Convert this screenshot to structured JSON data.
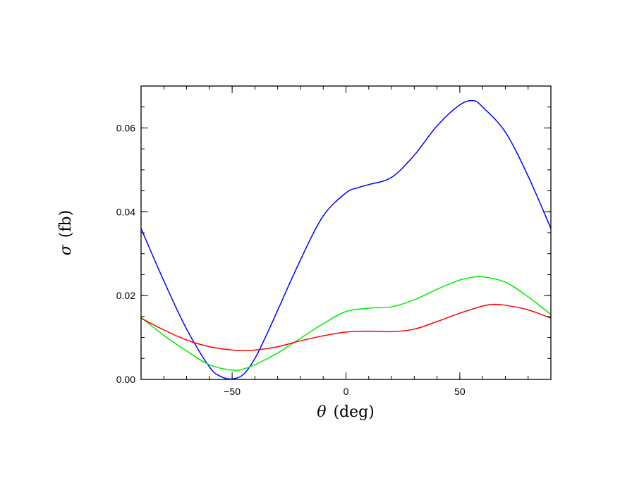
{
  "chart_data": {
    "type": "line",
    "xlabel": {
      "symbol": "θ",
      "unit": "(deg)"
    },
    "ylabel": {
      "symbol": "σ",
      "unit": "(fb)"
    },
    "xlim": [
      -90,
      90
    ],
    "ylim": [
      0,
      0.07
    ],
    "x_ticks": [
      -50,
      0,
      50
    ],
    "x_tick_labels": [
      "−50",
      "0",
      "50"
    ],
    "y_ticks": [
      0,
      0.02,
      0.04,
      0.06
    ],
    "y_tick_labels": [
      "0.00",
      "0.02",
      "0.04",
      "0.06"
    ],
    "x_minor_step": 10,
    "y_minor_step": 0.005,
    "grid": false,
    "legend": "none",
    "series": [
      {
        "color": "#0000ff",
        "x": [
          -90,
          -80,
          -70,
          -60,
          -55,
          -50,
          -45,
          -40,
          -35,
          -30,
          -20,
          -10,
          0,
          5,
          10,
          20,
          30,
          40,
          50,
          56,
          60,
          70,
          80,
          90
        ],
        "y": [
          0.036,
          0.0235,
          0.012,
          0.003,
          0.0007,
          0.0001,
          0.0012,
          0.005,
          0.0105,
          0.0165,
          0.0285,
          0.039,
          0.0445,
          0.0457,
          0.0465,
          0.0482,
          0.0535,
          0.0605,
          0.0655,
          0.0665,
          0.065,
          0.059,
          0.0485,
          0.036
        ]
      },
      {
        "color": "#00ee00",
        "x": [
          -90,
          -80,
          -70,
          -60,
          -50,
          -45,
          -40,
          -30,
          -20,
          -10,
          0,
          10,
          20,
          30,
          40,
          50,
          57,
          60,
          70,
          80,
          90
        ],
        "y": [
          0.0148,
          0.0105,
          0.0068,
          0.0035,
          0.0022,
          0.0025,
          0.0035,
          0.0063,
          0.0098,
          0.0133,
          0.0162,
          0.017,
          0.0173,
          0.019,
          0.0215,
          0.0237,
          0.0245,
          0.0245,
          0.0232,
          0.0197,
          0.0155
        ]
      },
      {
        "color": "#ff0000",
        "x": [
          -90,
          -80,
          -70,
          -60,
          -50,
          -45,
          -40,
          -30,
          -20,
          -10,
          0,
          10,
          20,
          30,
          40,
          50,
          60,
          65,
          70,
          80,
          90
        ],
        "y": [
          0.0146,
          0.0118,
          0.0094,
          0.0078,
          0.007,
          0.0069,
          0.007,
          0.0078,
          0.0092,
          0.0104,
          0.0113,
          0.0115,
          0.0114,
          0.012,
          0.0138,
          0.0158,
          0.0175,
          0.0179,
          0.0177,
          0.0166,
          0.0146
        ]
      }
    ]
  }
}
